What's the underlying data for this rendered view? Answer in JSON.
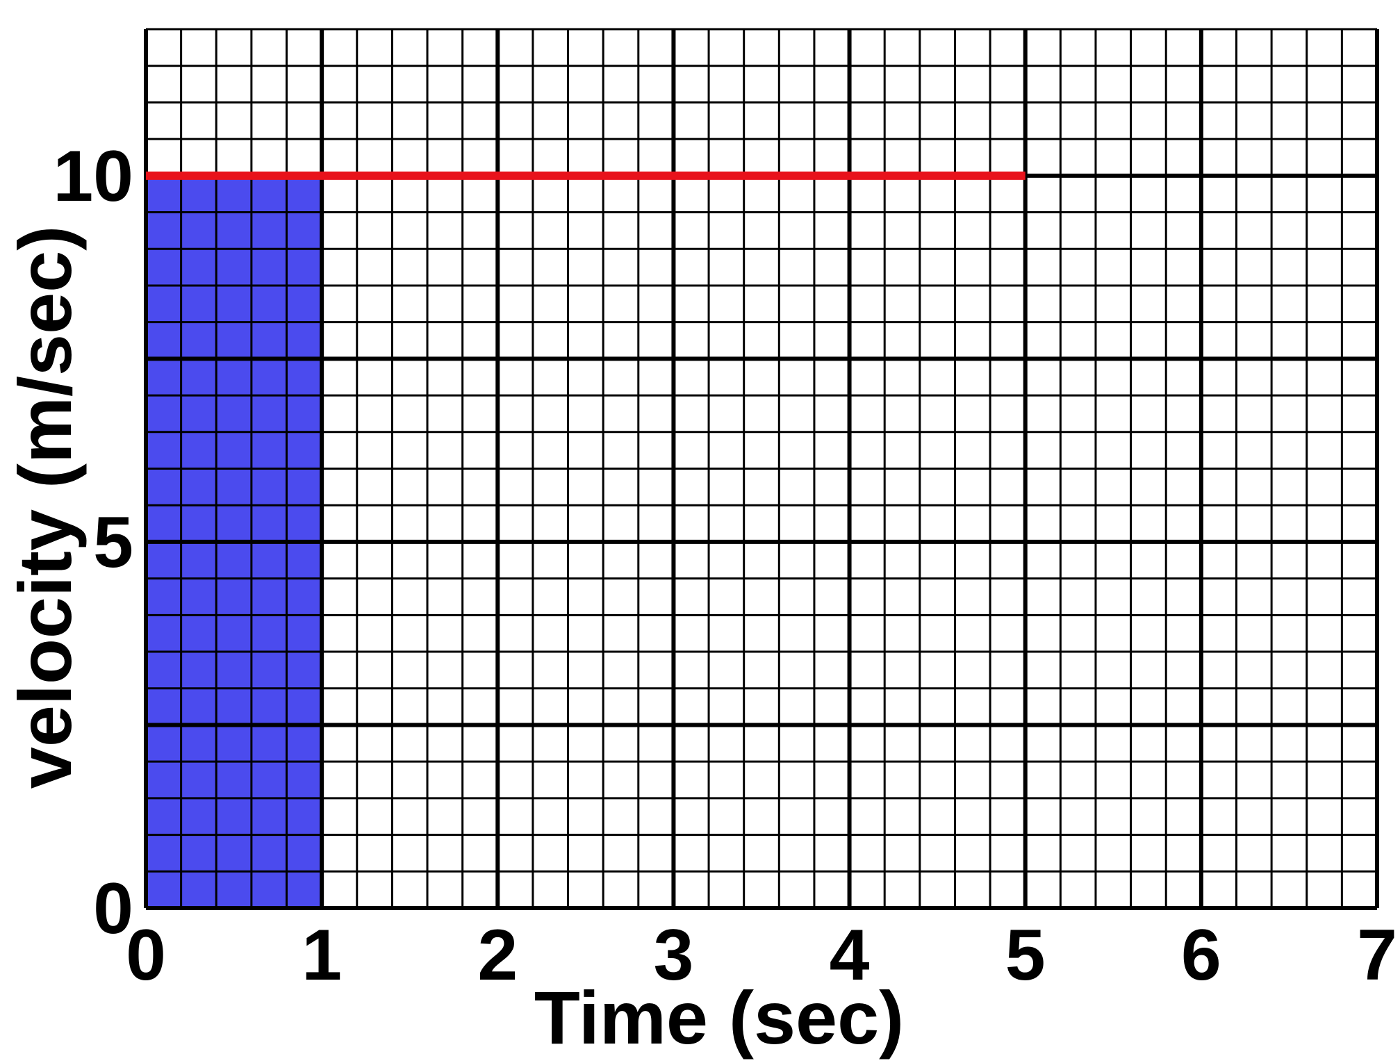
{
  "chart_data": {
    "type": "line",
    "xlabel": "Time (sec)",
    "ylabel": "velocity (m/sec)",
    "xlim": [
      0,
      7
    ],
    "ylim": [
      0,
      12
    ],
    "x_ticks": [
      "0",
      "1",
      "2",
      "3",
      "4",
      "5",
      "6",
      "7"
    ],
    "y_ticks": [
      {
        "value": 0,
        "label": "0"
      },
      {
        "value": 5,
        "label": "5"
      },
      {
        "value": 10,
        "label": "10"
      }
    ],
    "grid": true,
    "series": [
      {
        "x": [
          0,
          5
        ],
        "y": [
          10,
          10
        ],
        "color": "#e8121b"
      }
    ],
    "shaded_region": {
      "x": [
        0,
        1
      ],
      "y": [
        0,
        10
      ],
      "color": "#4b4bee"
    }
  }
}
